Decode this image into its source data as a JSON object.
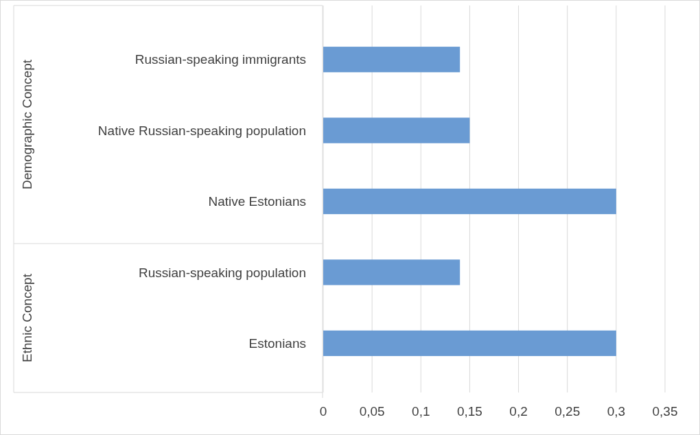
{
  "chart_data": {
    "type": "bar",
    "orientation": "horizontal",
    "categories": [
      "Russian-speaking immigrants",
      "Native Russian-speaking population",
      "Native Estonians",
      "Russian-speaking population",
      "Estonians"
    ],
    "values": [
      0.14,
      0.15,
      0.3,
      0.14,
      0.3
    ],
    "color": "#6a9bd3",
    "xlim": [
      0,
      0.35
    ],
    "xticks": [
      0,
      {
        "value": 0.05,
        "label": "0,05"
      },
      {
        "value": 0.1,
        "label": "0,1"
      },
      {
        "value": 0.15,
        "label": "0,15"
      },
      {
        "value": 0.2,
        "label": "0,2"
      },
      {
        "value": 0.25,
        "label": "0,25"
      },
      {
        "value": 0.3,
        "label": "0,3"
      },
      {
        "value": 0.35,
        "label": "0,35"
      }
    ],
    "grid": "x",
    "annotations": [
      "Demographic Concept",
      "Ethnic Concept"
    ]
  }
}
